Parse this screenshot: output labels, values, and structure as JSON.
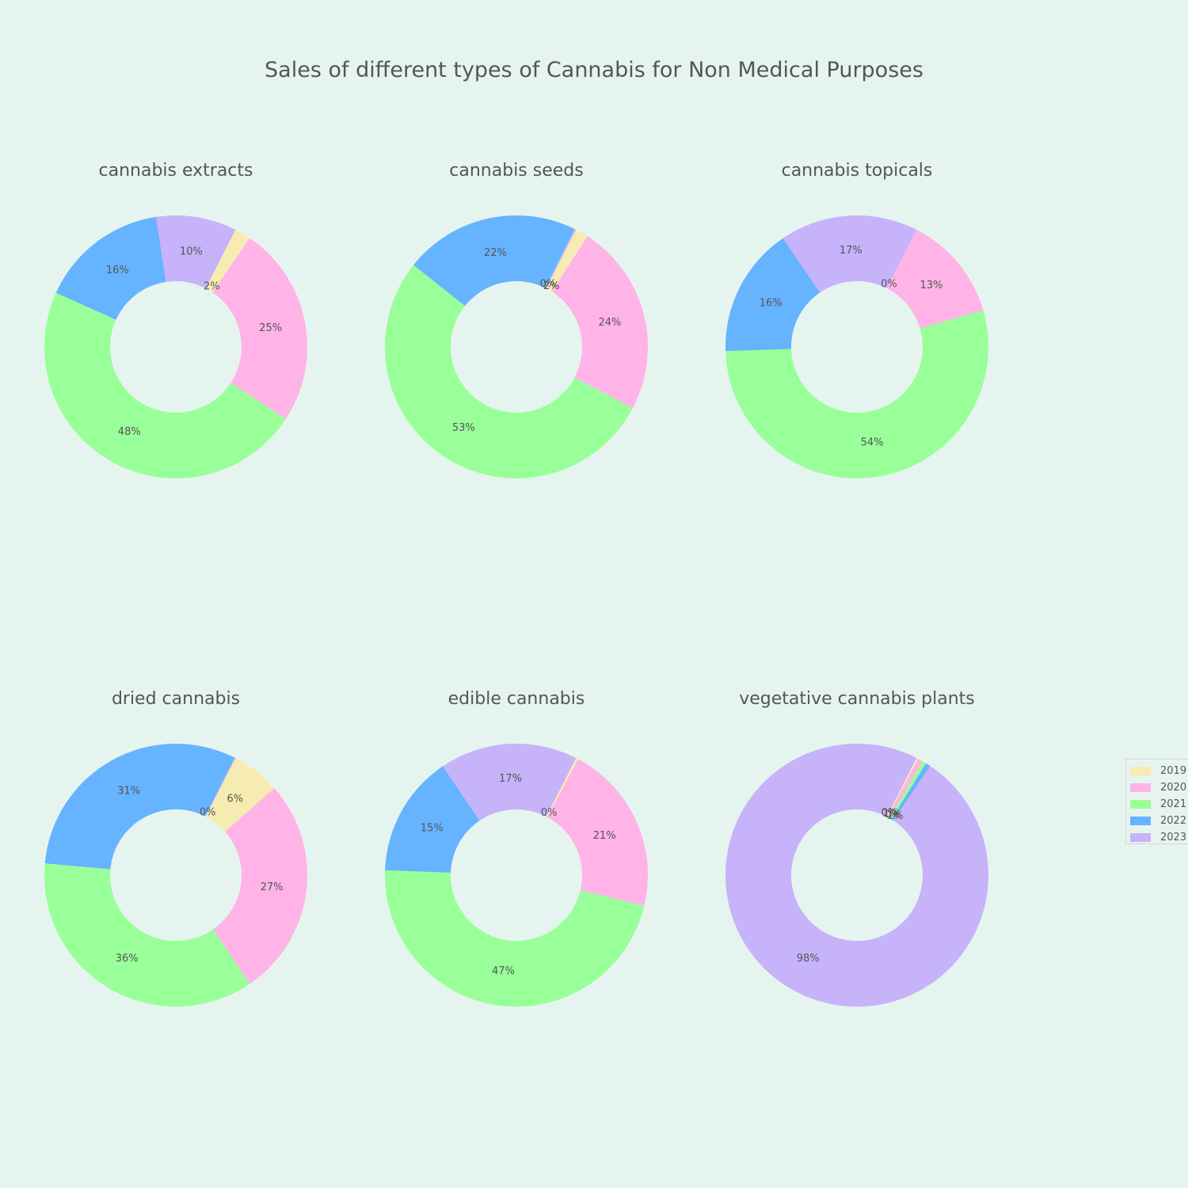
{
  "chart_data": {
    "type": "pie",
    "hole": true,
    "title": "Sales of different types of Cannabis for Non Medical Purposes",
    "legend_position": "right",
    "series": [
      {
        "name": "2019",
        "color": "#f6ebb1"
      },
      {
        "name": "2020",
        "color": "#ffb3e6"
      },
      {
        "name": "2021",
        "color": "#99ff99"
      },
      {
        "name": "2022",
        "color": "#66b3ff"
      },
      {
        "name": "2023",
        "color": "#c6b3fa"
      }
    ],
    "charts": [
      {
        "subtitle": "cannabis extracts",
        "values": {
          "2019": 2,
          "2020": 25,
          "2021": 48,
          "2022": 16,
          "2023": 10
        },
        "labels": {
          "2019": "2%",
          "2020": "25%",
          "2021": "48%",
          "2022": "16%",
          "2023": "10%"
        }
      },
      {
        "subtitle": "cannabis seeds",
        "values": {
          "2019": 1.6,
          "2020": 23.6,
          "2021": 53,
          "2022": 21.6,
          "2023": 0.2
        },
        "labels": {
          "2019": "2%",
          "2020": "24%",
          "2021": "53%",
          "2022": "22%",
          "2023": "0%"
        }
      },
      {
        "subtitle": "cannabis topicals",
        "values": {
          "2019": 0,
          "2020": 13,
          "2021": 54,
          "2022": 16,
          "2023": 17
        },
        "labels": {
          "2019": "0%",
          "2020": "13%",
          "2021": "54%",
          "2022": "16%",
          "2023": "17%"
        }
      },
      {
        "subtitle": "dried cannabis",
        "values": {
          "2019": 6,
          "2020": 27,
          "2021": 36,
          "2022": 31,
          "2023": 0.1
        },
        "labels": {
          "2019": "6%",
          "2020": "27%",
          "2021": "36%",
          "2022": "31%",
          "2023": "0%"
        }
      },
      {
        "subtitle": "edible cannabis",
        "values": {
          "2019": 0.3,
          "2020": 21,
          "2021": 47,
          "2022": 15,
          "2023": 17
        },
        "labels": {
          "2019": "0%",
          "2020": "21%",
          "2021": "47%",
          "2022": "15%",
          "2023": "17%"
        }
      },
      {
        "subtitle": "vegetative cannabis plants",
        "values": {
          "2019": 0.2,
          "2020": 0.6,
          "2021": 0.5,
          "2022": 0.6,
          "2023": 98
        },
        "labels": {
          "2019": "0%",
          "2020": "1%",
          "2021": "0%",
          "2022": "1%",
          "2023": "98%"
        }
      }
    ]
  }
}
